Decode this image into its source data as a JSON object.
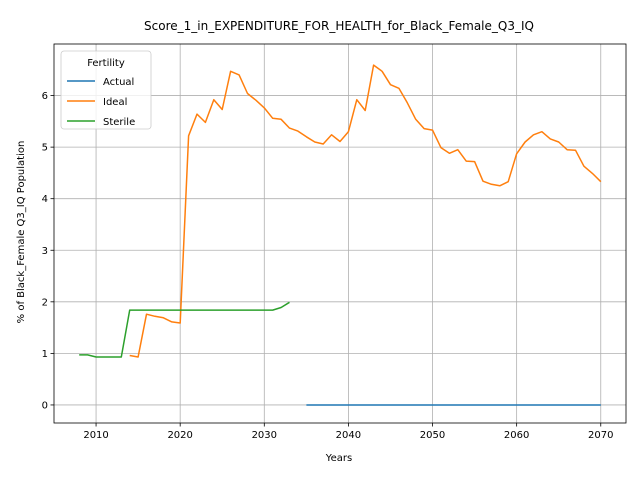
{
  "chart_data": {
    "type": "line",
    "title": "Score_1_in_EXPENDITURE_FOR_HEALTH_for_Black_Female_Q3_IQ",
    "xlabel": "Years",
    "ylabel": "% of Black_Female Q3_IQ Population",
    "xlim": [
      2005,
      2073
    ],
    "ylim": [
      -0.35,
      7.0
    ],
    "xticks": [
      2010,
      2020,
      2030,
      2040,
      2050,
      2060,
      2070
    ],
    "yticks": [
      0,
      1,
      2,
      3,
      4,
      5,
      6
    ],
    "grid": true,
    "legend": {
      "title": "Fertility",
      "placement": "top-left"
    },
    "series": [
      {
        "name": "Actual",
        "color": "#1f77b4",
        "x": [
          2035,
          2040,
          2045,
          2050,
          2055,
          2060,
          2065,
          2070
        ],
        "y": [
          0,
          0,
          0,
          0,
          0,
          0,
          0,
          0
        ]
      },
      {
        "name": "Ideal",
        "color": "#ff7f0e",
        "x": [
          2014,
          2015,
          2016,
          2017,
          2018,
          2019,
          2020,
          2021,
          2022,
          2023,
          2024,
          2025,
          2026,
          2027,
          2028,
          2029,
          2030,
          2031,
          2032,
          2033,
          2034,
          2035,
          2036,
          2037,
          2038,
          2039,
          2040,
          2041,
          2042,
          2043,
          2044,
          2045,
          2046,
          2047,
          2048,
          2049,
          2050,
          2051,
          2052,
          2053,
          2054,
          2055,
          2056,
          2057,
          2058,
          2059,
          2060,
          2061,
          2062,
          2063,
          2064,
          2065,
          2066,
          2067,
          2068,
          2069,
          2070
        ],
        "y": [
          0.96,
          0.93,
          1.76,
          1.72,
          1.69,
          1.61,
          1.59,
          5.22,
          5.64,
          5.48,
          5.92,
          5.73,
          6.47,
          6.4,
          6.04,
          5.91,
          5.76,
          5.56,
          5.54,
          5.37,
          5.31,
          5.2,
          5.1,
          5.06,
          5.24,
          5.11,
          5.3,
          5.92,
          5.71,
          6.59,
          6.47,
          6.21,
          6.14,
          5.86,
          5.54,
          5.36,
          5.33,
          4.99,
          4.88,
          4.95,
          4.73,
          4.72,
          4.34,
          4.28,
          4.25,
          4.33,
          4.87,
          5.1,
          5.24,
          5.3,
          5.16,
          5.1,
          4.95,
          4.94,
          4.63,
          4.49,
          4.33
        ]
      },
      {
        "name": "Sterile",
        "color": "#2ca02c",
        "x": [
          2008,
          2009,
          2010,
          2011,
          2012,
          2013,
          2014,
          2015,
          2016,
          2017,
          2018,
          2019,
          2020,
          2021,
          2022,
          2023,
          2024,
          2025,
          2026,
          2027,
          2028,
          2029,
          2030,
          2031,
          2032,
          2033
        ],
        "y": [
          0.97,
          0.97,
          0.93,
          0.93,
          0.93,
          0.93,
          1.84,
          1.84,
          1.84,
          1.84,
          1.84,
          1.84,
          1.84,
          1.84,
          1.84,
          1.84,
          1.84,
          1.84,
          1.84,
          1.84,
          1.84,
          1.84,
          1.84,
          1.84,
          1.89,
          1.99
        ]
      }
    ]
  }
}
